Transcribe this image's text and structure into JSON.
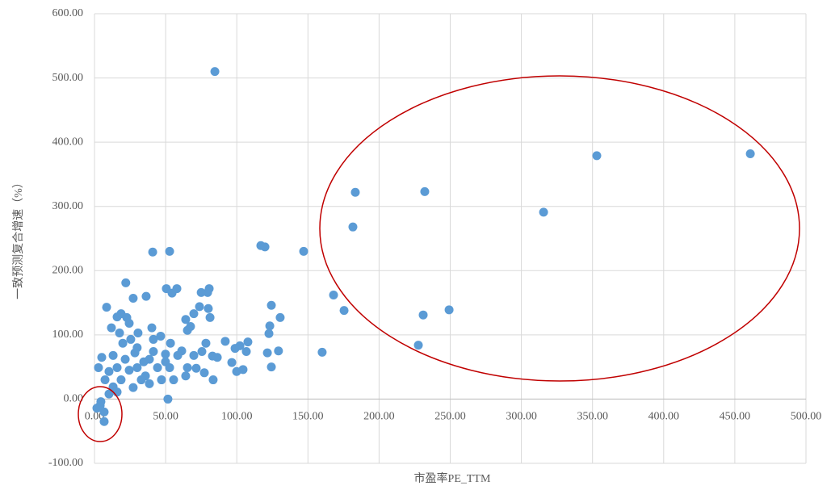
{
  "chart_data": {
    "type": "scatter",
    "x_label": "市盈率PE_TTM",
    "y_label": "一致预测复合增速（%）",
    "color": "#5b9bd5",
    "grid": true,
    "xlim": [
      0,
      500
    ],
    "ylim": [
      -100,
      600
    ],
    "xticks": [
      {
        "value": 0,
        "label": "0.00"
      },
      {
        "value": 50,
        "label": "50.00"
      },
      {
        "value": 100,
        "label": "100.00"
      },
      {
        "value": 150,
        "label": "150.00"
      },
      {
        "value": 200,
        "label": "200.00"
      },
      {
        "value": 250,
        "label": "250.00"
      },
      {
        "value": 300,
        "label": "300.00"
      },
      {
        "value": 350,
        "label": "350.00"
      },
      {
        "value": 400,
        "label": "400.00"
      },
      {
        "value": 450,
        "label": "450.00"
      },
      {
        "value": 500,
        "label": "500.00"
      }
    ],
    "yticks": [
      {
        "value": -100,
        "label": "-100.00"
      },
      {
        "value": 0,
        "label": "0.00"
      },
      {
        "value": 100,
        "label": "100.00"
      },
      {
        "value": 200,
        "label": "200.00"
      },
      {
        "value": 300,
        "label": "300.00"
      },
      {
        "value": 400,
        "label": "400.00"
      },
      {
        "value": 500,
        "label": "500.00"
      },
      {
        "value": 600,
        "label": "600.00"
      }
    ],
    "x": [
      84.6,
      460.9,
      353,
      315.6,
      232.1,
      183.3,
      181.6,
      147,
      116.9,
      119.8,
      40.9,
      52.8,
      22,
      168,
      175.4,
      249.2,
      231,
      227.6,
      160,
      124.3,
      130.5,
      123.2,
      122.6,
      121.5,
      129.3,
      124.3,
      107.8,
      106.7,
      102.2,
      98.8,
      99.9,
      104.4,
      96.5,
      91.9,
      86.3,
      82.9,
      80.6,
      79.5,
      75,
      80,
      81.2,
      73.8,
      69.8,
      57.9,
      50.5,
      54.5,
      27.2,
      36.3,
      24.4,
      30.6,
      40.3,
      8.5,
      11.9,
      15.9,
      18.7,
      22.7,
      17.6,
      64.1,
      65.3,
      67.5,
      51.6,
      6.8,
      6.8,
      4,
      1.7,
      4.5,
      5.1,
      2.8,
      83.4,
      77.2,
      71.5,
      61.3,
      46.5,
      53.4,
      38.6,
      28.4,
      32.9,
      18.7,
      13.1,
      10.2,
      15.9,
      24.4,
      35.8,
      44.3,
      49.9,
      55.6,
      64.1,
      69.8,
      75.5,
      78.3,
      58.5,
      41.4,
      30,
      21.6,
      15.9,
      7.4,
      27.2,
      38.6,
      47.1,
      30,
      34.6,
      19.9,
      25.5,
      41.4,
      49.9,
      52.8,
      65.3,
      13.1,
      10.2
    ],
    "values": [
      510,
      382,
      379,
      291,
      323,
      322,
      268,
      230,
      239,
      237,
      229,
      230,
      181,
      162,
      138,
      139,
      131,
      84,
      73,
      146,
      127,
      114,
      102,
      72,
      75,
      50,
      89,
      74,
      83,
      79,
      43,
      46,
      57,
      90,
      65,
      67,
      172,
      166,
      166,
      141,
      127,
      144,
      133,
      172,
      172,
      165,
      157,
      160,
      118,
      103,
      111,
      143,
      111,
      128,
      133,
      127,
      103,
      124,
      107,
      113,
      0,
      -35,
      -20,
      -10,
      -14,
      -4,
      65,
      49,
      30,
      41,
      48,
      75,
      98,
      87,
      62,
      72,
      30,
      30,
      19,
      8,
      11,
      45,
      36,
      49,
      58,
      30,
      36,
      68,
      74,
      87,
      68,
      74,
      80,
      62,
      49,
      30,
      18,
      24,
      30,
      49,
      58,
      87,
      93,
      93,
      70,
      49,
      49,
      68,
      43
    ]
  }
}
